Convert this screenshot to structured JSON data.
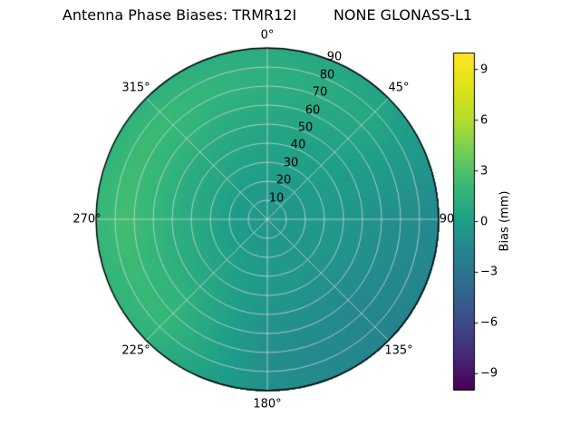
{
  "title": "Antenna Phase Biases: TRMR12I        NONE GLONASS-L1",
  "chart_data": {
    "type": "heatmap",
    "projection": "polar",
    "title": "Antenna Phase Biases: TRMR12I        NONE GLONASS-L1",
    "theta_tick_labels": [
      "0°",
      "45°",
      "90",
      "135°",
      "180°",
      "225°",
      "270°",
      "315°"
    ],
    "theta_tick_degrees": [
      0,
      45,
      90,
      135,
      180,
      225,
      270,
      315
    ],
    "theta_direction": "clockwise",
    "theta_zero_location": "top",
    "r_tick_labels": [
      "10",
      "20",
      "30",
      "40",
      "50",
      "60",
      "70",
      "80",
      "90"
    ],
    "r_ticks": [
      10,
      20,
      30,
      40,
      50,
      60,
      70,
      80,
      90
    ],
    "r_max": 90,
    "r_label_angle_deg": 22.5,
    "grid_on": true,
    "colorbar": {
      "label": "Bias (mm)",
      "tick_labels": [
        "9",
        "6",
        "3",
        "0",
        "−3",
        "−6",
        "−9"
      ],
      "tick_values": [
        9,
        6,
        3,
        0,
        -3,
        -6,
        -9
      ],
      "vmin": -10,
      "vmax": 10,
      "colormap": "viridis",
      "position": "right"
    },
    "grid": {
      "theta_deg": [
        0,
        45,
        90,
        135,
        180,
        225,
        270,
        315
      ],
      "r": [
        0,
        15,
        30,
        45,
        60,
        75,
        90
      ],
      "bias_mm": [
        [
          -0.5,
          -0.3,
          0.2,
          0.5,
          1.0,
          1.4,
          1.0
        ],
        [
          -0.5,
          -0.4,
          0.0,
          0.2,
          0.5,
          0.8,
          0.3
        ],
        [
          -0.5,
          -0.5,
          -0.3,
          -0.6,
          -1.0,
          -1.3,
          -1.5
        ],
        [
          -0.5,
          -0.5,
          -0.6,
          -1.0,
          -1.5,
          -1.8,
          -2.0
        ],
        [
          -0.5,
          -0.4,
          -0.3,
          -0.6,
          -1.0,
          -1.2,
          -1.0
        ],
        [
          -0.5,
          -0.3,
          0.3,
          0.8,
          1.5,
          2.0,
          1.5
        ],
        [
          -0.5,
          -0.2,
          0.6,
          1.2,
          2.0,
          2.5,
          2.0
        ],
        [
          -0.5,
          -0.2,
          0.5,
          1.0,
          1.8,
          2.2,
          1.5
        ]
      ]
    },
    "colors": {
      "background": "#ffffff",
      "grid_line": "#dcdcdc",
      "outline": "#000000",
      "viridis_anchors": [
        "#440154",
        "#482878",
        "#3e4a89",
        "#31688e",
        "#26828e",
        "#1f9e89",
        "#35b779",
        "#6dcd59",
        "#b4de2c",
        "#dfe318",
        "#fde725"
      ]
    }
  }
}
